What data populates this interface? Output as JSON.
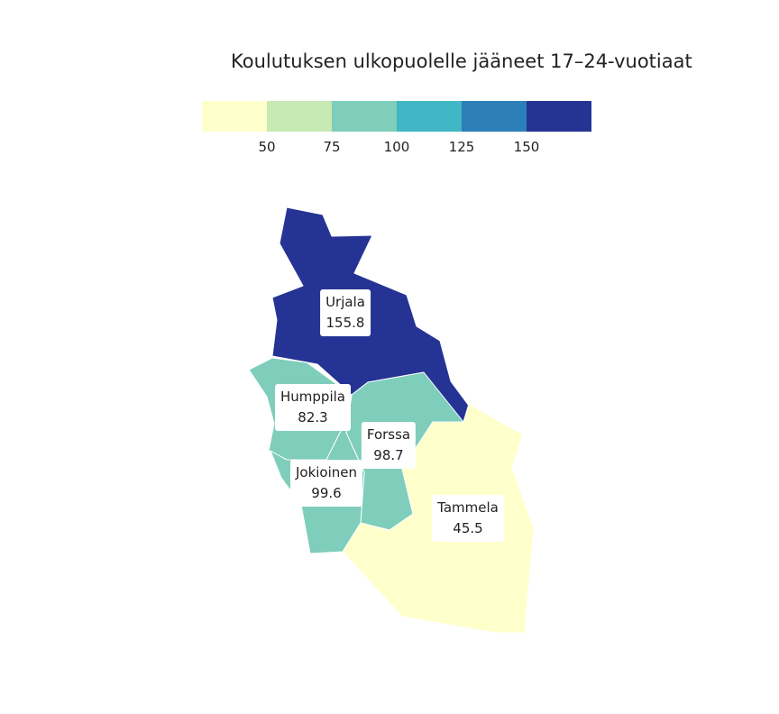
{
  "title": "Koulutuksen ulkopuolelle jääneet 17–24-vuotiaat",
  "legend": {
    "colors": [
      "#ffffcc",
      "#c7e9b4",
      "#7fcdbb",
      "#41b6c4",
      "#2c7fb8",
      "#253494"
    ],
    "ticks": [
      "50",
      "75",
      "100",
      "125",
      "150"
    ]
  },
  "regions": [
    {
      "name": "Urjala",
      "value": "155.8",
      "color": "#253494"
    },
    {
      "name": "Humppila",
      "value": "82.3",
      "color": "#7fcdbb"
    },
    {
      "name": "Forssa",
      "value": "98.7",
      "color": "#7fcdbb"
    },
    {
      "name": "Jokioinen",
      "value": "99.6",
      "color": "#7fcdbb"
    },
    {
      "name": "Tammela",
      "value": "45.5",
      "color": "#ffffcc"
    }
  ]
}
